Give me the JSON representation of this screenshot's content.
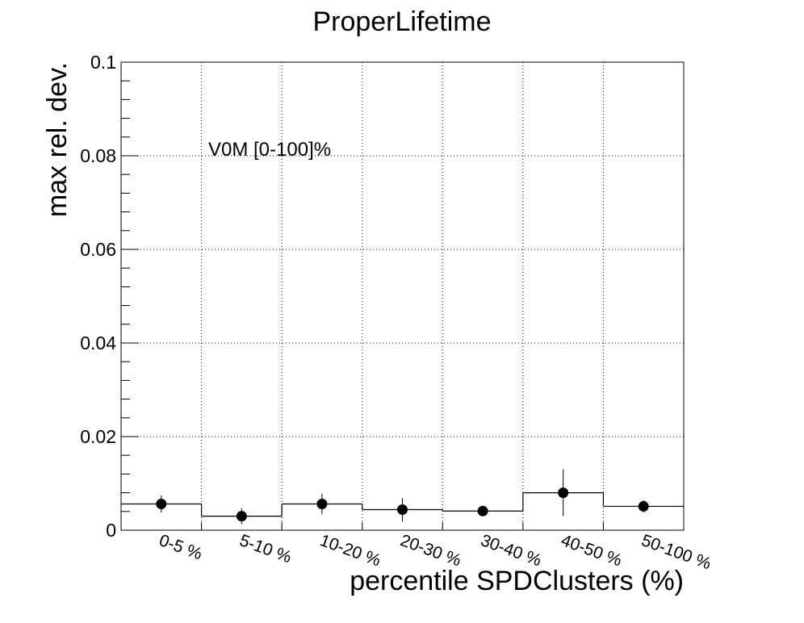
{
  "chart_data": {
    "type": "scatter",
    "title": "ProperLifetime",
    "xlabel": "percentile SPDClusters (%)",
    "ylabel": "max rel. dev.",
    "annotation": "V0M [0-100]%",
    "categories": [
      "0-5 %",
      "5-10 %",
      "10-20 %",
      "20-30 %",
      "30-40 %",
      "40-50 %",
      "50-100 %"
    ],
    "values": [
      0.0056,
      0.003,
      0.0056,
      0.0044,
      0.0041,
      0.008,
      0.0051
    ],
    "errors": [
      0.0018,
      0.0017,
      0.0022,
      0.0025,
      0.0008,
      0.005,
      0.0013
    ],
    "ylim": [
      0,
      0.1
    ],
    "yticks": [
      0,
      0.02,
      0.04,
      0.06,
      0.08,
      0.1
    ],
    "ytick_labels": [
      "0",
      "0.02",
      "0.04",
      "0.06",
      "0.08",
      "0.1"
    ],
    "grid": true,
    "marker_color": "#000000"
  }
}
